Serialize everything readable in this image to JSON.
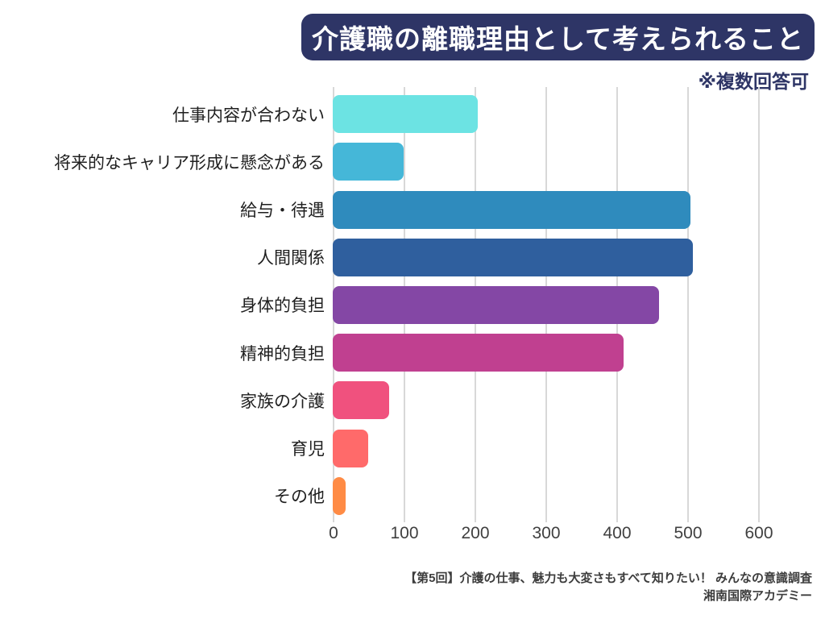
{
  "header": {
    "title": "介護職の離職理由として考えられること",
    "note": "※複数回答可"
  },
  "chart_data": {
    "type": "bar",
    "orientation": "horizontal",
    "title": "介護職の離職理由として考えられること",
    "subtitle": "※複数回答可",
    "categories": [
      "仕事内容が合わない",
      "将来的なキャリア形成に懸念がある",
      "給与・待遇",
      "人間関係",
      "身体的負担",
      "精神的負担",
      "家族の介護",
      "育児",
      "その他"
    ],
    "values": [
      205,
      100,
      505,
      508,
      460,
      410,
      80,
      50,
      18
    ],
    "bar_colors": [
      "#6ce3e3",
      "#45b7d8",
      "#2f8bbd",
      "#2f5f9e",
      "#8447a5",
      "#c04090",
      "#f0517e",
      "#ff6a6a",
      "#ff8b45"
    ],
    "xlabel": "",
    "ylabel": "",
    "xlim": [
      0,
      600
    ],
    "xticks": [
      0,
      100,
      200,
      300,
      400,
      500,
      600
    ],
    "grid": true,
    "legend": false
  },
  "footer": {
    "line1": "【第5回】介護の仕事、魅力も大変さもすべて知りたい！ みんなの意識調査",
    "line2": "湘南国際アカデミー"
  },
  "colors": {
    "background": "#ffffff",
    "banner_bg": "#2e3566",
    "banner_text": "#ffffff",
    "note_text": "#2e3566",
    "gridline": "#d8d8d8",
    "axis_text": "#404040",
    "label_text": "#1f1f1f",
    "footer_text": "#3d3d3d"
  }
}
